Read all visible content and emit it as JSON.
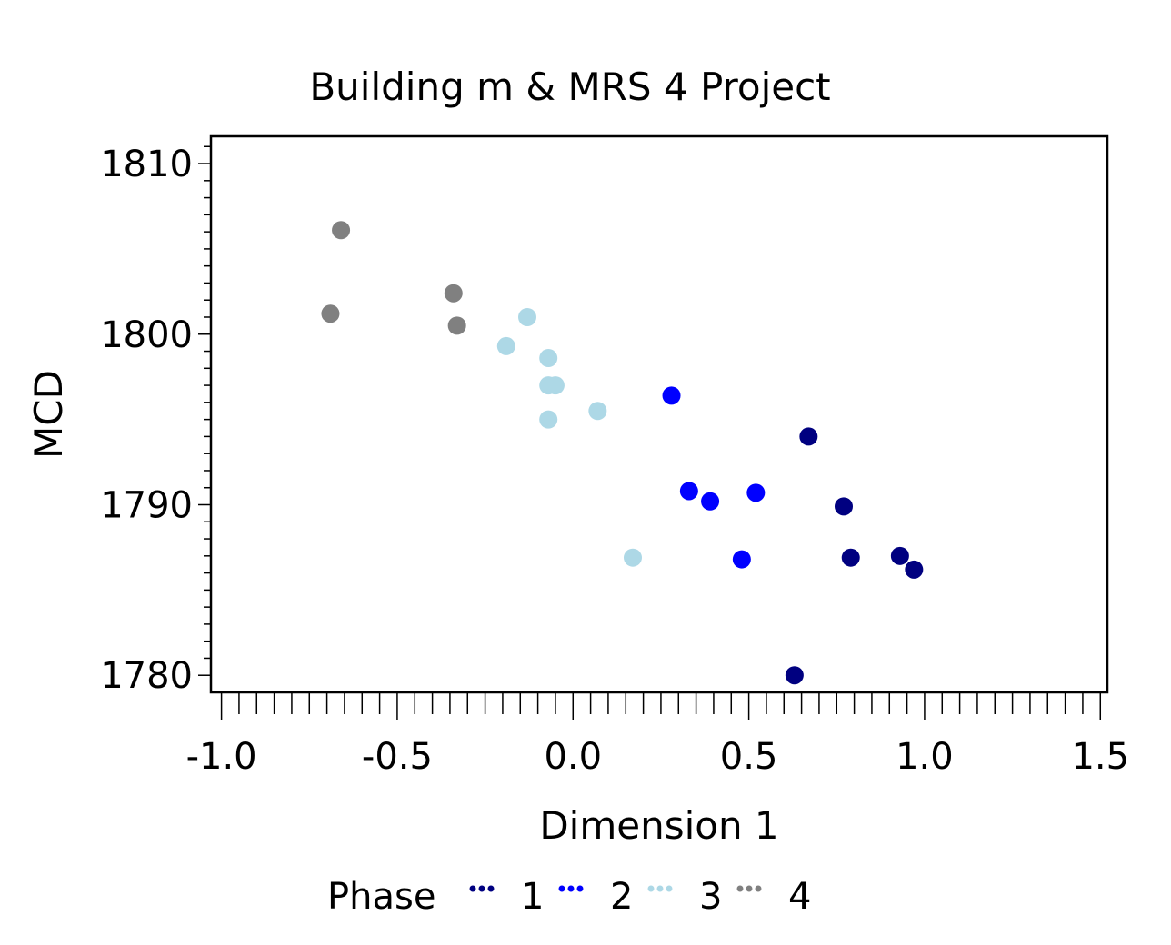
{
  "chart_data": {
    "type": "scatter",
    "title": "Building m & MRS 4 Project",
    "xlabel": "Dimension 1",
    "ylabel": "MCD",
    "xlim": [
      -1.03,
      1.52
    ],
    "ylim": [
      1779,
      1811.6
    ],
    "xticks": [
      -1.0,
      -0.5,
      0.0,
      0.5,
      1.0,
      1.5
    ],
    "xtick_labels": [
      "-1.0",
      "-0.5",
      "0.0",
      "0.5",
      "1.0",
      "1.5"
    ],
    "yticks": [
      1780,
      1790,
      1800,
      1810
    ],
    "ytick_labels": [
      "1780",
      "1790",
      "1800",
      "1810"
    ],
    "grid": false,
    "legend": {
      "title": "Phase",
      "position": "bottom"
    },
    "series": [
      {
        "name": "1",
        "color": "#000080",
        "points": [
          {
            "x": 0.67,
            "y": 1794.0
          },
          {
            "x": 0.77,
            "y": 1789.9
          },
          {
            "x": 0.79,
            "y": 1786.9
          },
          {
            "x": 0.93,
            "y": 1787.0
          },
          {
            "x": 0.97,
            "y": 1786.2
          },
          {
            "x": 0.63,
            "y": 1780.0
          }
        ]
      },
      {
        "name": "2",
        "color": "#0000FF",
        "points": [
          {
            "x": 0.28,
            "y": 1796.4
          },
          {
            "x": 0.33,
            "y": 1790.8
          },
          {
            "x": 0.39,
            "y": 1790.2
          },
          {
            "x": 0.52,
            "y": 1790.7
          },
          {
            "x": 0.48,
            "y": 1786.8
          }
        ]
      },
      {
        "name": "3",
        "color": "#ADD8E6",
        "points": [
          {
            "x": -0.13,
            "y": 1801.0
          },
          {
            "x": -0.19,
            "y": 1799.3
          },
          {
            "x": -0.07,
            "y": 1798.6
          },
          {
            "x": -0.07,
            "y": 1797.0
          },
          {
            "x": -0.05,
            "y": 1797.0
          },
          {
            "x": -0.07,
            "y": 1795.0
          },
          {
            "x": 0.07,
            "y": 1795.5
          },
          {
            "x": 0.17,
            "y": 1786.9
          }
        ]
      },
      {
        "name": "4",
        "color": "#808080",
        "points": [
          {
            "x": -0.66,
            "y": 1806.1
          },
          {
            "x": -0.69,
            "y": 1801.2
          },
          {
            "x": -0.34,
            "y": 1802.4
          },
          {
            "x": -0.33,
            "y": 1800.5
          }
        ]
      }
    ]
  }
}
